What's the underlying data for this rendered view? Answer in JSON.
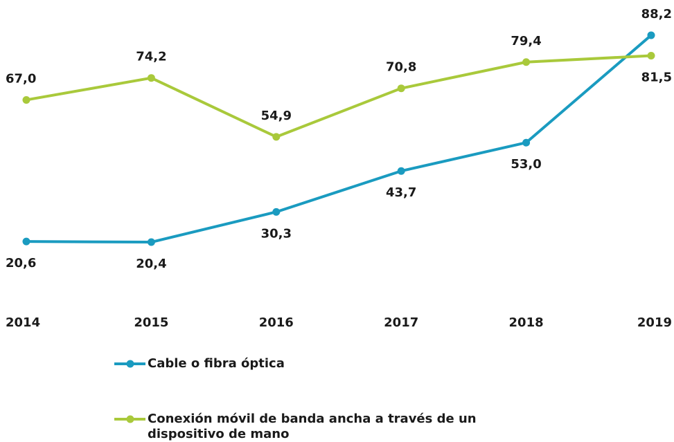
{
  "chart_data": {
    "type": "line",
    "categories": [
      "2014",
      "2015",
      "2016",
      "2017",
      "2018",
      "2019"
    ],
    "series": [
      {
        "name": "Cable o fibra óptica",
        "color": "#1a9bc0",
        "values": [
          20.6,
          20.4,
          30.3,
          43.7,
          53.0,
          88.2
        ],
        "value_labels": [
          "20,6",
          "20,4",
          "30,3",
          "43,7",
          "53,0",
          "88,2"
        ]
      },
      {
        "name": "Conexión móvil de banda ancha a través de un dispositivo de mano",
        "color": "#a9c93b",
        "values": [
          67.0,
          74.2,
          54.9,
          70.8,
          79.4,
          81.5
        ],
        "value_labels": [
          "67,0",
          "74,2",
          "54,9",
          "70,8",
          "79,4",
          "81,5"
        ]
      }
    ],
    "ylim": [
      0,
      90
    ]
  }
}
